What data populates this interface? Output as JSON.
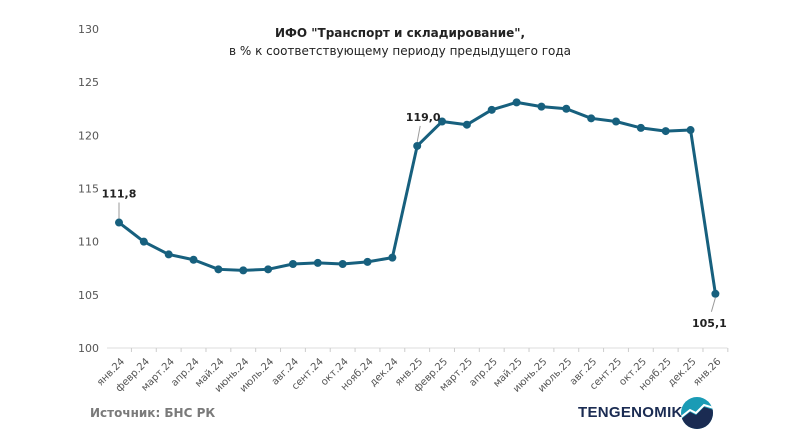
{
  "title": {
    "line1": "ИФО \"Транспорт и складирование\",",
    "line2": "в % к соответствующему периоду предыдущего года"
  },
  "source": "Источник: БНС РК",
  "brand": {
    "name": "TENGENOMIKA",
    "colors": {
      "text": "#1a2b52",
      "logo_top": "#1a9bb5",
      "logo_bottom": "#1a2b52"
    }
  },
  "colors": {
    "line": "#17607e",
    "grid": "#dddddd"
  },
  "chart_data": {
    "type": "line",
    "title": "ИФО \"Транспорт и складирование\", в % к соответствующему периоду предыдущего года",
    "xlabel": "",
    "ylabel": "",
    "ylim": [
      100,
      130
    ],
    "yticks": [
      100,
      105,
      110,
      115,
      120,
      125,
      130
    ],
    "grid": false,
    "legend": null,
    "categories": [
      "янв.24",
      "февр.24",
      "март.24",
      "апр.24",
      "май.24",
      "июнь.24",
      "июль.24",
      "авг.24",
      "сент.24",
      "окт.24",
      "нояб.24",
      "дек.24",
      "янв.25",
      "февр.25",
      "март.25",
      "апр.25",
      "май.25",
      "июнь.25",
      "июль.25",
      "авг.25",
      "сент.25",
      "окт.25",
      "нояб.25",
      "дек.25",
      "янв.26"
    ],
    "series": [
      {
        "name": "ИФО Транспорт и складирование",
        "values": [
          111.8,
          110.0,
          108.8,
          108.3,
          107.4,
          107.3,
          107.4,
          107.9,
          108.0,
          107.9,
          108.1,
          108.5,
          119.0,
          121.3,
          121.0,
          122.4,
          123.1,
          122.7,
          122.5,
          121.6,
          121.3,
          120.7,
          120.4,
          120.5,
          105.1
        ]
      }
    ],
    "annotations": [
      {
        "index": 0,
        "text": "111,8"
      },
      {
        "index": 12,
        "text": "119,0"
      },
      {
        "index": 24,
        "text": "105,1"
      }
    ]
  }
}
